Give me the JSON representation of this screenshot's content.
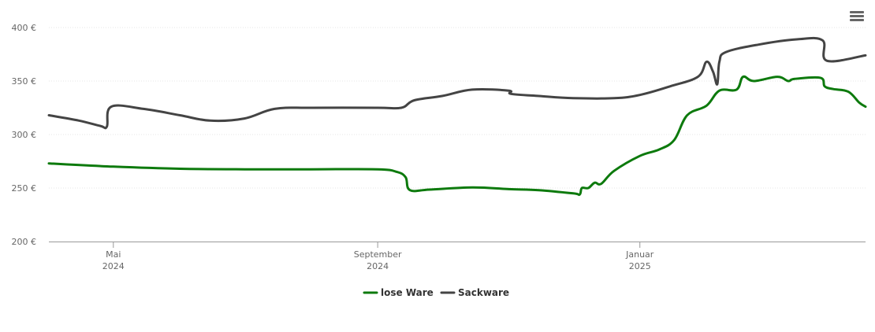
{
  "chart_data": {
    "type": "line",
    "y_tick_labels": [
      "200 €",
      "250 €",
      "300 €",
      "350 €",
      "400 €"
    ],
    "y_ticks": [
      200,
      250,
      300,
      350,
      400
    ],
    "ylim": [
      200,
      400
    ],
    "x_ticks": [
      {
        "date": "2024-05-01",
        "label_month": "Mai",
        "label_year": "2024"
      },
      {
        "date": "2024-09-01",
        "label_month": "September",
        "label_year": "2024"
      },
      {
        "date": "2025-01-01",
        "label_month": "Januar",
        "label_year": "2025"
      }
    ],
    "xlim": [
      "2024-04-01",
      "2025-04-16"
    ],
    "grid": true,
    "legend_position": "bottom-center",
    "series": [
      {
        "name": "lose Ware",
        "color": "#0d7a0d",
        "points": [
          [
            "2024-04-01",
            273
          ],
          [
            "2024-05-01",
            270
          ],
          [
            "2024-06-01",
            268
          ],
          [
            "2024-07-01",
            267.5
          ],
          [
            "2024-08-01",
            267.5
          ],
          [
            "2024-09-01",
            267.5
          ],
          [
            "2024-09-10",
            265
          ],
          [
            "2024-09-14",
            260
          ],
          [
            "2024-09-16",
            248
          ],
          [
            "2024-09-25",
            248.5
          ],
          [
            "2024-10-15",
            250.5
          ],
          [
            "2024-11-01",
            249
          ],
          [
            "2024-11-15",
            248
          ],
          [
            "2024-12-01",
            245
          ],
          [
            "2024-12-04",
            244
          ],
          [
            "2024-12-05",
            250
          ],
          [
            "2024-12-08",
            250
          ],
          [
            "2024-12-11",
            255
          ],
          [
            "2024-12-14",
            254
          ],
          [
            "2024-12-20",
            266
          ],
          [
            "2025-01-01",
            280
          ],
          [
            "2025-01-10",
            286
          ],
          [
            "2025-01-17",
            295
          ],
          [
            "2025-01-23",
            318
          ],
          [
            "2025-02-01",
            327
          ],
          [
            "2025-02-07",
            341
          ],
          [
            "2025-02-15",
            342
          ],
          [
            "2025-02-18",
            354
          ],
          [
            "2025-02-23",
            350
          ],
          [
            "2025-03-06",
            354
          ],
          [
            "2025-03-11",
            350
          ],
          [
            "2025-03-14",
            352
          ],
          [
            "2025-03-26",
            353
          ],
          [
            "2025-03-28",
            345
          ],
          [
            "2025-04-01",
            342.5
          ],
          [
            "2025-04-08",
            340
          ],
          [
            "2025-04-13",
            330
          ],
          [
            "2025-04-16",
            326
          ]
        ]
      },
      {
        "name": "Sackware",
        "color": "#444444",
        "points": [
          [
            "2024-04-01",
            318
          ],
          [
            "2024-04-15",
            313
          ],
          [
            "2024-04-25",
            308
          ],
          [
            "2024-04-28",
            307.5
          ],
          [
            "2024-04-30",
            326
          ],
          [
            "2024-05-15",
            324
          ],
          [
            "2024-06-01",
            318
          ],
          [
            "2024-06-15",
            313
          ],
          [
            "2024-07-01",
            315
          ],
          [
            "2024-07-15",
            324
          ],
          [
            "2024-08-01",
            325
          ],
          [
            "2024-09-01",
            325
          ],
          [
            "2024-09-12",
            325
          ],
          [
            "2024-09-18",
            332
          ],
          [
            "2024-10-01",
            336
          ],
          [
            "2024-10-15",
            342
          ],
          [
            "2024-11-01",
            341
          ],
          [
            "2024-11-02",
            338
          ],
          [
            "2024-11-15",
            336
          ],
          [
            "2024-12-01",
            334
          ],
          [
            "2024-12-20",
            334
          ],
          [
            "2025-01-01",
            337
          ],
          [
            "2025-01-15",
            345
          ],
          [
            "2025-01-28",
            354
          ],
          [
            "2025-02-01",
            368
          ],
          [
            "2025-02-04",
            359
          ],
          [
            "2025-02-06",
            347
          ],
          [
            "2025-02-07",
            368
          ],
          [
            "2025-02-10",
            377
          ],
          [
            "2025-02-25",
            384
          ],
          [
            "2025-03-15",
            389
          ],
          [
            "2025-03-27",
            388
          ],
          [
            "2025-03-29",
            369
          ],
          [
            "2025-04-16",
            374
          ]
        ]
      }
    ]
  },
  "legend": [
    {
      "label": "lose Ware",
      "color": "#0d7a0d"
    },
    {
      "label": "Sackware",
      "color": "#444444"
    }
  ],
  "menu_icon": "hamburger-menu-icon"
}
